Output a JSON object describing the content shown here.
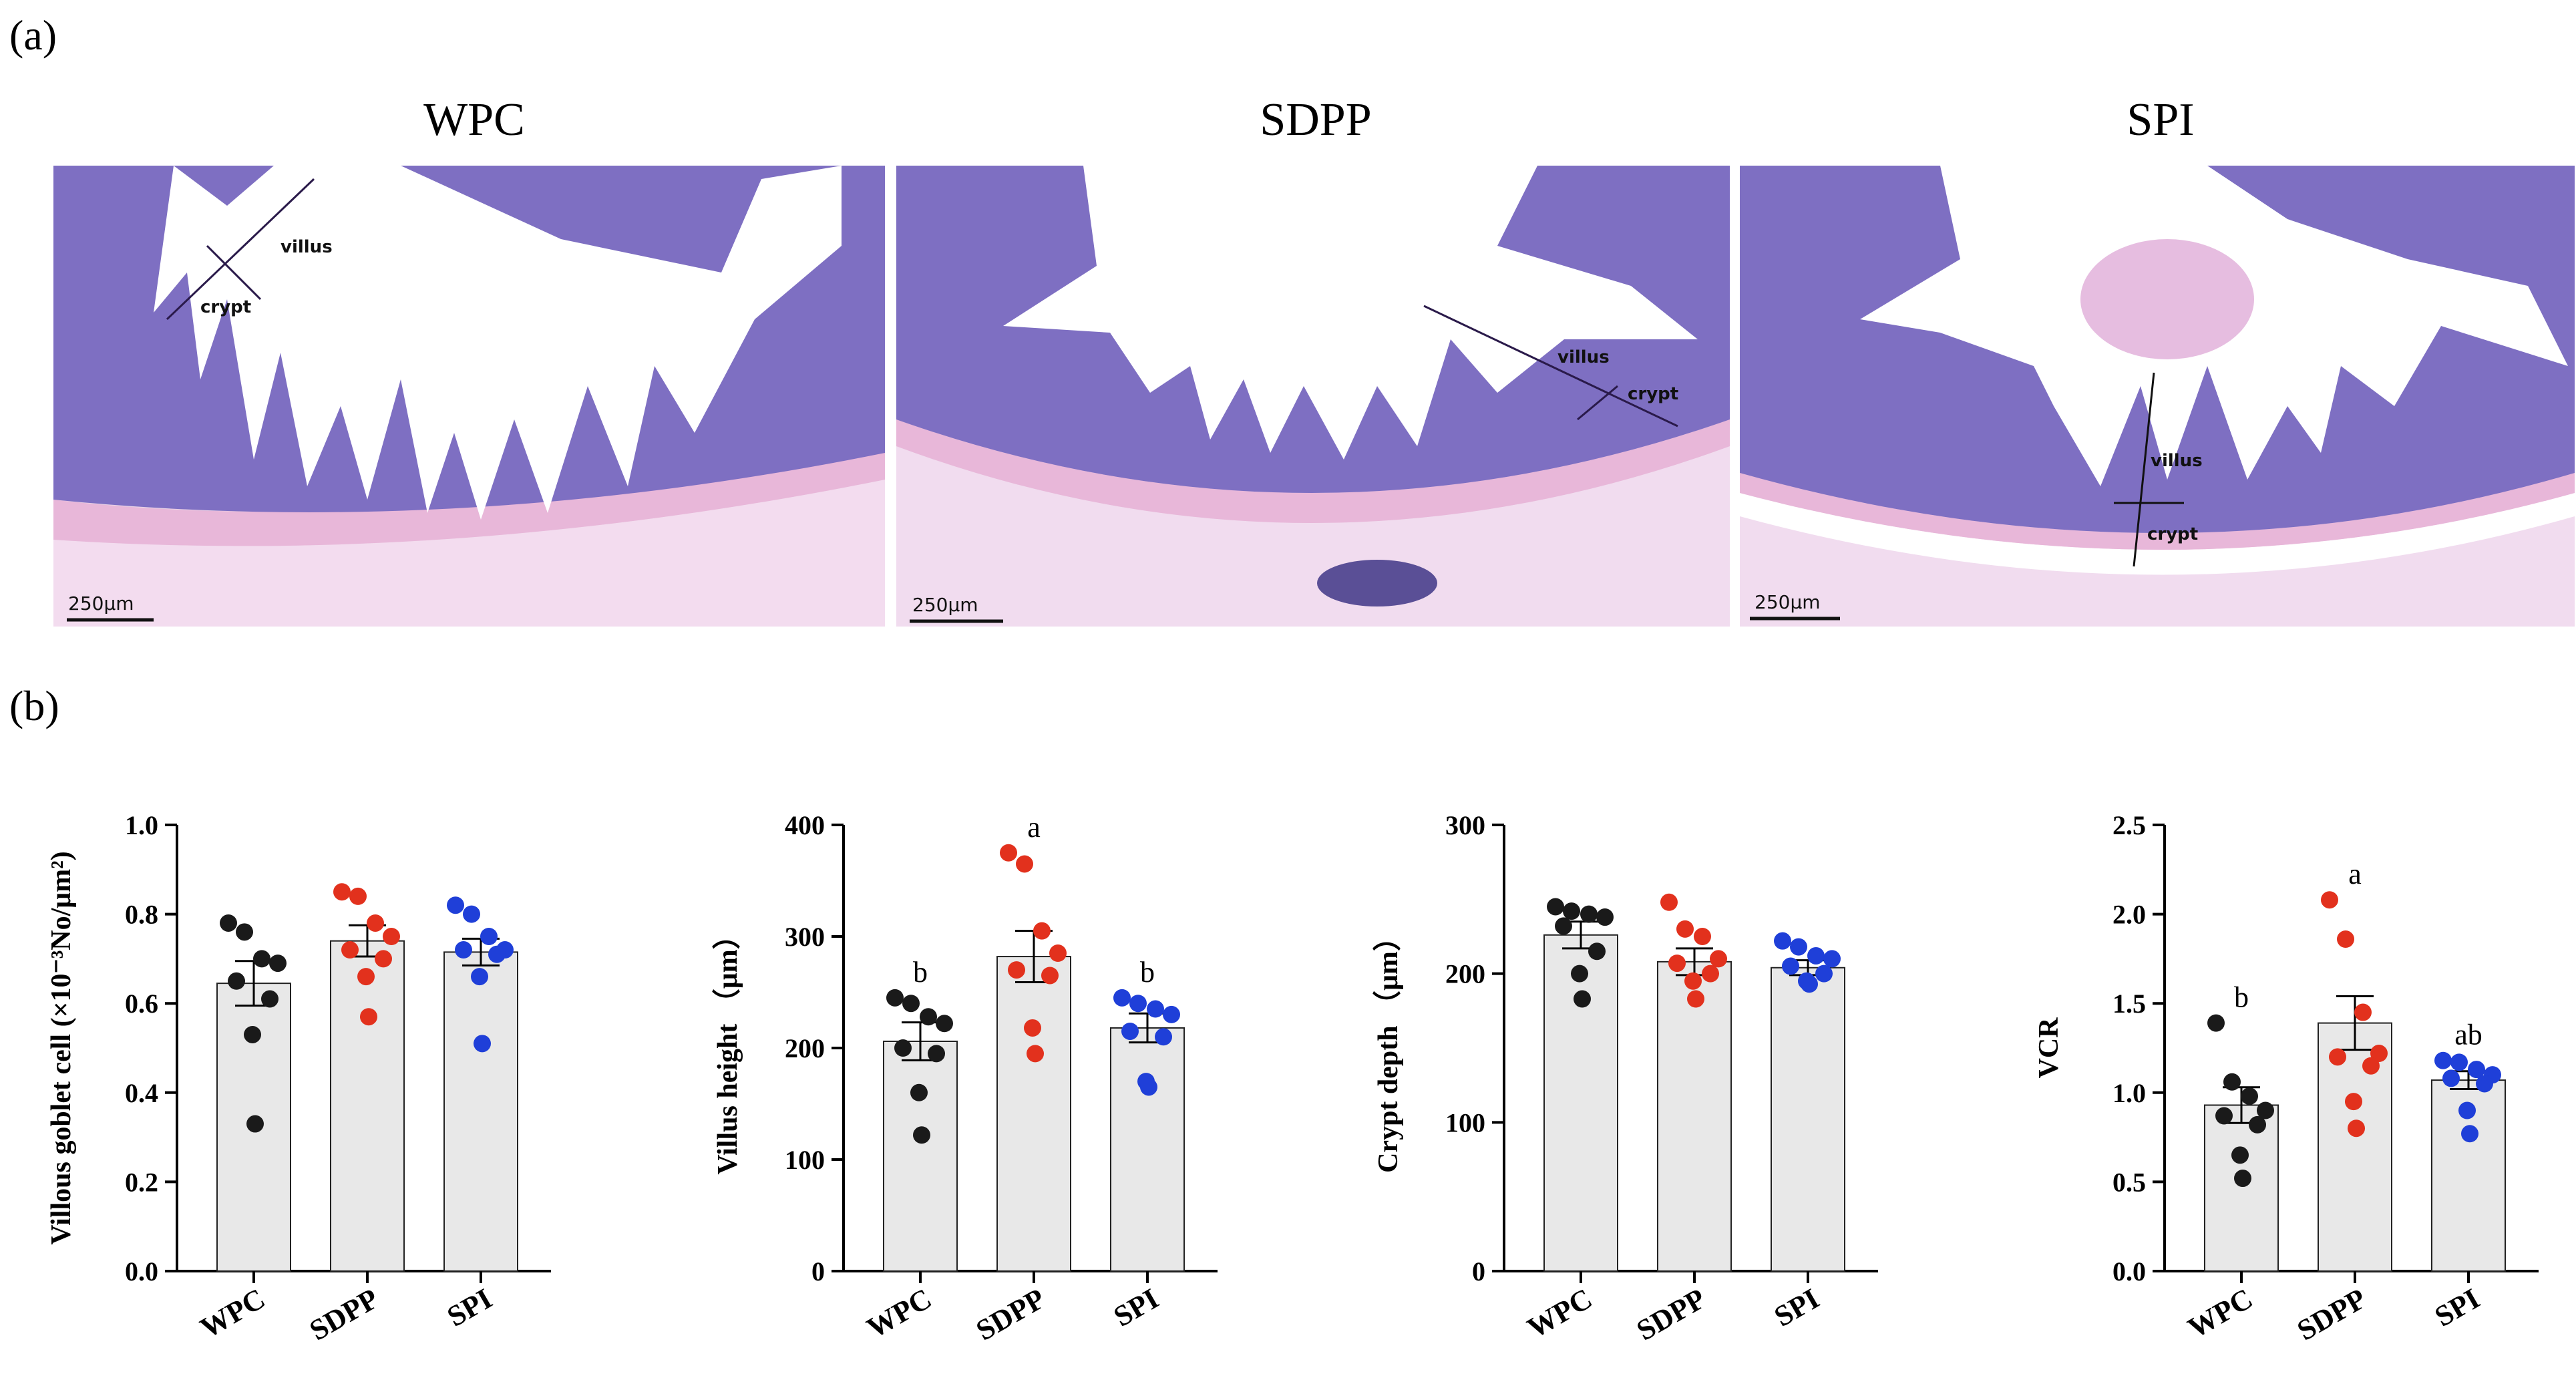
{
  "panel_a_label": "(a)",
  "panel_b_label": "(b)",
  "micrographs": [
    {
      "title": "WPC",
      "villus_label": "villus",
      "crypt_label": "crypt",
      "scale_label": "250μm"
    },
    {
      "title": "SDPP",
      "villus_label": "villus",
      "crypt_label": "crypt",
      "scale_label": "250μm"
    },
    {
      "title": "SPI",
      "villus_label": "villus",
      "crypt_label": "crypt",
      "scale_label": "250μm"
    }
  ],
  "colors": {
    "WPC": "#1a1a1a",
    "SDPP": "#e2311d",
    "SPI": "#1f3fd8",
    "bar_fill": "#e8e8e8",
    "tissue": "#7e6fc2",
    "lumen": "#ffffff"
  },
  "chart_data": [
    {
      "type": "bar",
      "categories": [
        "WPC",
        "SDPP",
        "SPI"
      ],
      "ylabel": "Villous goblet cell (×10⁻³No/μm²)",
      "ylim": [
        0,
        1.0
      ],
      "yticks": [
        "0.0",
        "0.2",
        "0.4",
        "0.6",
        "0.8",
        "1.0"
      ],
      "ytick_values": [
        0,
        0.2,
        0.4,
        0.6,
        0.8,
        1.0
      ],
      "means": [
        0.645,
        0.74,
        0.715
      ],
      "sem": [
        0.05,
        0.035,
        0.03
      ],
      "points": [
        [
          0.78,
          0.76,
          0.7,
          0.69,
          0.65,
          0.61,
          0.53,
          0.33
        ],
        [
          0.85,
          0.84,
          0.78,
          0.75,
          0.72,
          0.7,
          0.66,
          0.57
        ],
        [
          0.82,
          0.8,
          0.75,
          0.72,
          0.72,
          0.71,
          0.66,
          0.51
        ]
      ],
      "sig_labels": [
        "",
        "",
        ""
      ]
    },
    {
      "type": "bar",
      "categories": [
        "WPC",
        "SDPP",
        "SPI"
      ],
      "ylabel": "Villus height （μm）",
      "ylim": [
        0,
        400
      ],
      "yticks": [
        "0",
        "100",
        "200",
        "300",
        "400"
      ],
      "ytick_values": [
        0,
        100,
        200,
        300,
        400
      ],
      "means": [
        206,
        282,
        218
      ],
      "sem": [
        17,
        23,
        13
      ],
      "points": [
        [
          245,
          240,
          228,
          222,
          200,
          195,
          160,
          122
        ],
        [
          375,
          365,
          305,
          285,
          270,
          265,
          218,
          195
        ],
        [
          245,
          240,
          235,
          230,
          215,
          210,
          170,
          165
        ]
      ],
      "sig_labels": [
        "b",
        "a",
        "b"
      ]
    },
    {
      "type": "bar",
      "categories": [
        "WPC",
        "SDPP",
        "SPI"
      ],
      "ylabel": "Crypt depth （μm）",
      "ylim": [
        0,
        300
      ],
      "yticks": [
        "0",
        "100",
        "200",
        "300"
      ],
      "ytick_values": [
        0,
        100,
        200,
        300
      ],
      "means": [
        226,
        208,
        204
      ],
      "sem": [
        9,
        9,
        5
      ],
      "points": [
        [
          245,
          242,
          240,
          238,
          232,
          215,
          200,
          183
        ],
        [
          248,
          230,
          225,
          210,
          207,
          200,
          195,
          183
        ],
        [
          222,
          218,
          212,
          210,
          205,
          200,
          195,
          193
        ]
      ],
      "sig_labels": [
        "",
        "",
        ""
      ]
    },
    {
      "type": "bar",
      "categories": [
        "WPC",
        "SDPP",
        "SPI"
      ],
      "ylabel": "VCR",
      "ylim": [
        0,
        2.5
      ],
      "yticks": [
        "0.0",
        "0.5",
        "1.0",
        "1.5",
        "2.0",
        "2.5"
      ],
      "ytick_values": [
        0,
        0.5,
        1.0,
        1.5,
        2.0,
        2.5
      ],
      "means": [
        0.93,
        1.39,
        1.07
      ],
      "sem": [
        0.1,
        0.15,
        0.05
      ],
      "points": [
        [
          1.39,
          1.06,
          0.98,
          0.9,
          0.87,
          0.82,
          0.65,
          0.52
        ],
        [
          2.08,
          1.86,
          1.45,
          1.22,
          1.2,
          1.15,
          0.95,
          0.8
        ],
        [
          1.18,
          1.17,
          1.13,
          1.1,
          1.08,
          1.05,
          0.9,
          0.77
        ]
      ],
      "sig_labels": [
        "b",
        "a",
        "ab"
      ]
    }
  ]
}
